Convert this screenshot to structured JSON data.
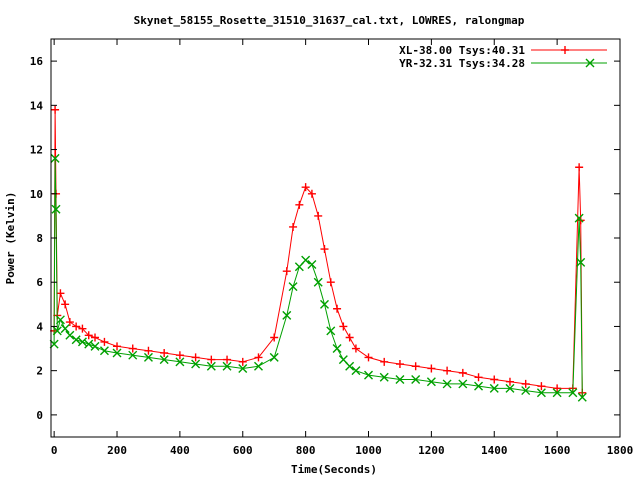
{
  "chart_data": {
    "type": "scatter",
    "title": "Skynet_58155_Rosette_31510_31637_cal.txt, LOWRES, ralongmap",
    "xlabel": "Time(Seconds)",
    "ylabel": "Power (Kelvin)",
    "xlim": [
      -10,
      1800
    ],
    "ylim": [
      -1,
      17
    ],
    "xticks": [
      0,
      200,
      400,
      600,
      800,
      1000,
      1200,
      1400,
      1600,
      1800
    ],
    "yticks": [
      0,
      2,
      4,
      6,
      8,
      10,
      12,
      14,
      16
    ],
    "grid": false,
    "legend_position": "top-right",
    "colors": {
      "XL": "#ff0000",
      "YR": "#00a000"
    },
    "series": [
      {
        "name": "XL-38.00 Tsys:40.31",
        "color": "#ff0000",
        "marker": "+",
        "x": [
          0,
          3,
          6,
          10,
          20,
          35,
          50,
          70,
          90,
          110,
          130,
          160,
          200,
          250,
          300,
          350,
          400,
          450,
          500,
          550,
          600,
          650,
          700,
          740,
          760,
          780,
          800,
          820,
          840,
          860,
          880,
          900,
          920,
          940,
          960,
          1000,
          1050,
          1100,
          1150,
          1200,
          1250,
          1300,
          1350,
          1400,
          1450,
          1500,
          1550,
          1600,
          1650,
          1670,
          1675,
          1680
        ],
        "y": [
          3.8,
          13.8,
          10.0,
          4.5,
          5.5,
          5.0,
          4.2,
          4.0,
          3.9,
          3.6,
          3.5,
          3.3,
          3.1,
          3.0,
          2.9,
          2.8,
          2.7,
          2.6,
          2.5,
          2.5,
          2.4,
          2.6,
          3.5,
          6.5,
          8.5,
          9.5,
          10.3,
          10.0,
          9.0,
          7.5,
          6.0,
          4.8,
          4.0,
          3.5,
          3.0,
          2.6,
          2.4,
          2.3,
          2.2,
          2.1,
          2.0,
          1.9,
          1.7,
          1.6,
          1.5,
          1.4,
          1.3,
          1.2,
          1.2,
          11.2,
          8.8,
          1.0
        ]
      },
      {
        "name": "YR-32.31 Tsys:34.28",
        "color": "#00a000",
        "marker": "x",
        "x": [
          0,
          3,
          6,
          10,
          20,
          35,
          50,
          70,
          90,
          110,
          130,
          160,
          200,
          250,
          300,
          350,
          400,
          450,
          500,
          550,
          600,
          650,
          700,
          740,
          760,
          780,
          800,
          820,
          840,
          860,
          880,
          900,
          920,
          940,
          960,
          1000,
          1050,
          1100,
          1150,
          1200,
          1250,
          1300,
          1350,
          1400,
          1450,
          1500,
          1550,
          1600,
          1650,
          1670,
          1675,
          1680
        ],
        "y": [
          3.2,
          11.6,
          9.3,
          3.8,
          4.3,
          3.9,
          3.6,
          3.4,
          3.3,
          3.2,
          3.1,
          2.9,
          2.8,
          2.7,
          2.6,
          2.5,
          2.4,
          2.3,
          2.2,
          2.2,
          2.1,
          2.2,
          2.6,
          4.5,
          5.8,
          6.7,
          7.0,
          6.8,
          6.0,
          5.0,
          3.8,
          3.0,
          2.5,
          2.2,
          2.0,
          1.8,
          1.7,
          1.6,
          1.6,
          1.5,
          1.4,
          1.4,
          1.3,
          1.2,
          1.2,
          1.1,
          1.0,
          1.0,
          1.0,
          8.9,
          6.9,
          0.8
        ]
      }
    ]
  }
}
